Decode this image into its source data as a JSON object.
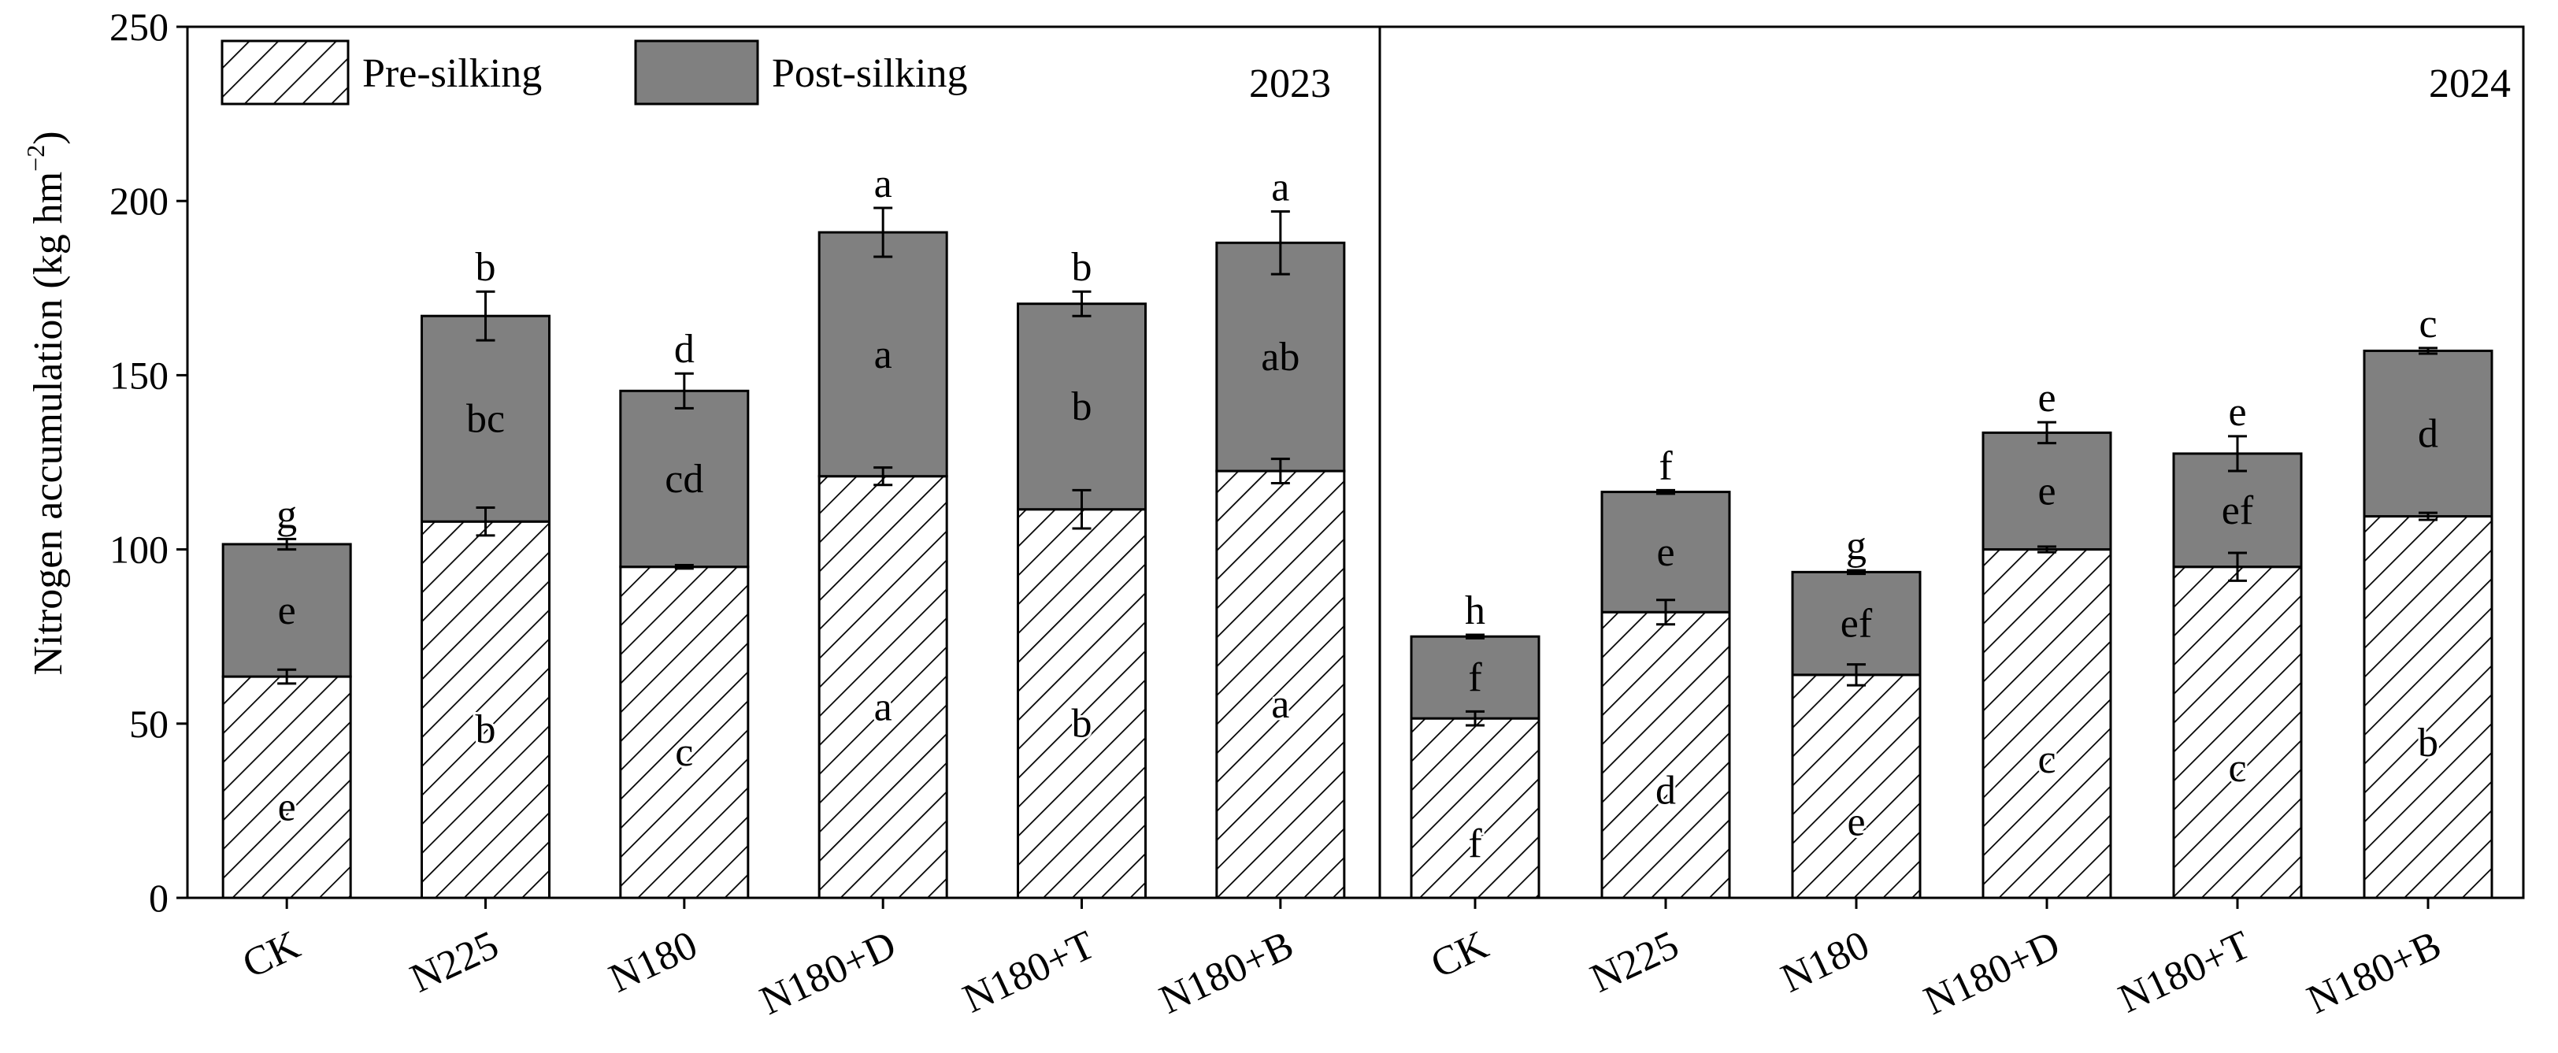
{
  "chart_data": {
    "type": "bar",
    "stacked": true,
    "ylabel_main": "Nitrogen accumulation (kg hm",
    "ylabel_sup": "−2",
    "ylabel_close": ")",
    "ylim": [
      0,
      250
    ],
    "yticks": [
      0,
      50,
      100,
      150,
      200,
      250
    ],
    "legend": {
      "placement": "top-left",
      "items": [
        {
          "label": "Pre-silking",
          "pattern": "hatch"
        },
        {
          "label": "Post-silking",
          "color": "#808080"
        }
      ]
    },
    "colors": {
      "post": "#808080",
      "pre_fill": "#ffffff",
      "hatch": "#000000"
    },
    "panels": [
      {
        "title": "2023",
        "categories": [
          "CK",
          "N225",
          "N180",
          "N180+D",
          "N180+T",
          "N180+B"
        ],
        "series": [
          {
            "name": "Pre-silking",
            "values": [
              63.5,
              108,
              95,
              121,
              111.5,
              122.5
            ],
            "errors": [
              2,
              4,
              0.5,
              2.5,
              5.5,
              3.5
            ],
            "letters": [
              "e",
              "b",
              "c",
              "a",
              "b",
              "a"
            ]
          },
          {
            "name": "Post-silking",
            "values": [
              38,
              59,
              50.5,
              70,
              59,
              65.5
            ],
            "errors": [
              1.5,
              7,
              5,
              7,
              3.5,
              9
            ],
            "letters": [
              "e",
              "bc",
              "cd",
              "a",
              "b",
              "ab"
            ]
          }
        ],
        "total_letters": [
          "g",
          "b",
          "d",
          "a",
          "b",
          "a"
        ]
      },
      {
        "title": "2024",
        "categories": [
          "CK",
          "N225",
          "N180",
          "N180+D",
          "N180+T",
          "N180+B"
        ],
        "series": [
          {
            "name": "Pre-silking",
            "values": [
              51.5,
              82,
              64,
              100,
              95,
              109.5
            ],
            "errors": [
              2,
              3.5,
              3,
              0.8,
              4,
              1
            ],
            "letters": [
              "f",
              "d",
              "e",
              "c",
              "c",
              "b"
            ]
          },
          {
            "name": "Post-silking",
            "values": [
              23.5,
              34.5,
              29.5,
              33.5,
              32.5,
              47.5
            ],
            "errors": [
              0.5,
              0.5,
              0.5,
              3,
              5,
              0.8
            ],
            "letters": [
              "f",
              "e",
              "ef",
              "e",
              "ef",
              "d"
            ]
          }
        ],
        "total_letters": [
          "h",
          "f",
          "g",
          "e",
          "e",
          "c"
        ]
      }
    ]
  }
}
